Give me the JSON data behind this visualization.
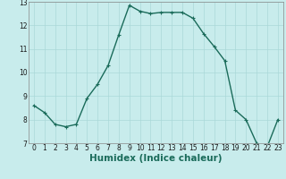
{
  "xlabel": "Humidex (Indice chaleur)",
  "x": [
    0,
    1,
    2,
    3,
    4,
    5,
    6,
    7,
    8,
    9,
    10,
    11,
    12,
    13,
    14,
    15,
    16,
    17,
    18,
    19,
    20,
    21,
    22,
    23
  ],
  "y": [
    8.6,
    8.3,
    7.8,
    7.7,
    7.8,
    8.9,
    9.5,
    10.3,
    11.6,
    12.85,
    12.6,
    12.5,
    12.55,
    12.55,
    12.55,
    12.3,
    11.65,
    11.1,
    10.5,
    8.4,
    8.0,
    7.0,
    6.85,
    8.0
  ],
  "line_color": "#1a6b5a",
  "marker": "+",
  "marker_size": 3,
  "bg_color": "#c8ecec",
  "grid_color": "#aad8d8",
  "ylim": [
    7,
    13
  ],
  "xlim": [
    -0.5,
    23.5
  ],
  "yticks": [
    7,
    8,
    9,
    10,
    11,
    12,
    13
  ],
  "xticks": [
    0,
    1,
    2,
    3,
    4,
    5,
    6,
    7,
    8,
    9,
    10,
    11,
    12,
    13,
    14,
    15,
    16,
    17,
    18,
    19,
    20,
    21,
    22,
    23
  ],
  "tick_label_fontsize": 5.5,
  "xlabel_fontsize": 7.5,
  "line_width": 1.0
}
